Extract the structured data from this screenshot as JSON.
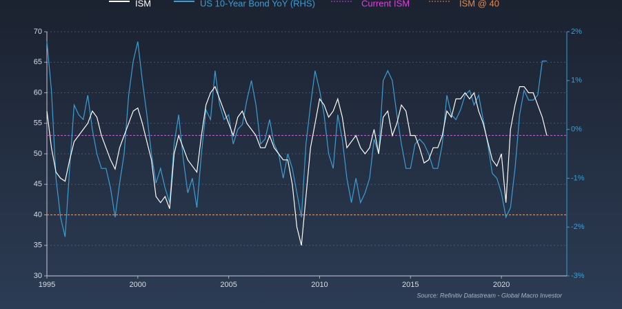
{
  "chart_data": {
    "type": "line",
    "x": [
      1995,
      1995.25,
      1995.5,
      1995.75,
      1996,
      1996.25,
      1996.5,
      1996.75,
      1997,
      1997.25,
      1997.5,
      1997.75,
      1998,
      1998.25,
      1998.5,
      1998.75,
      1999,
      1999.25,
      1999.5,
      1999.75,
      2000,
      2000.25,
      2000.5,
      2000.75,
      2001,
      2001.25,
      2001.5,
      2001.75,
      2002,
      2002.25,
      2002.5,
      2002.75,
      2003,
      2003.25,
      2003.5,
      2003.75,
      2004,
      2004.25,
      2004.5,
      2004.75,
      2005,
      2005.25,
      2005.5,
      2005.75,
      2006,
      2006.25,
      2006.5,
      2006.75,
      2007,
      2007.25,
      2007.5,
      2007.75,
      2008,
      2008.25,
      2008.5,
      2008.75,
      2009,
      2009.25,
      2009.5,
      2009.75,
      2010,
      2010.25,
      2010.5,
      2010.75,
      2011,
      2011.25,
      2011.5,
      2011.75,
      2012,
      2012.25,
      2012.5,
      2012.75,
      2013,
      2013.25,
      2013.5,
      2013.75,
      2014,
      2014.25,
      2014.5,
      2014.75,
      2015,
      2015.25,
      2015.5,
      2015.75,
      2016,
      2016.25,
      2016.5,
      2016.75,
      2017,
      2017.25,
      2017.5,
      2017.75,
      2018,
      2018.25,
      2018.5,
      2018.75,
      2019,
      2019.25,
      2019.5,
      2019.75,
      2020,
      2020.25,
      2020.5,
      2020.75,
      2021,
      2021.25,
      2021.5,
      2021.75,
      2022,
      2022.25,
      2022.5
    ],
    "series": [
      {
        "name": "ISM",
        "color": "#ffffff",
        "values": [
          57,
          51,
          47,
          46,
          45.5,
          49,
          52,
          53,
          54,
          55,
          57,
          56,
          53,
          51,
          49,
          47.5,
          51,
          53,
          55,
          57,
          57.5,
          55,
          52,
          49,
          43,
          42,
          43,
          41,
          50,
          53,
          51,
          49,
          48,
          47,
          53,
          58,
          60,
          61,
          59,
          57,
          55,
          53,
          56,
          57,
          55,
          54,
          53,
          51,
          51,
          53,
          51,
          50,
          49,
          49,
          45,
          38,
          35,
          43,
          51,
          55,
          59,
          58,
          56,
          57,
          59,
          56,
          51,
          52,
          53,
          51,
          50,
          51,
          54,
          50,
          56,
          57,
          53,
          55,
          58,
          57,
          53,
          53,
          51,
          48.5,
          49,
          51,
          51,
          53,
          57,
          56,
          59,
          59,
          60,
          59,
          60,
          57,
          55,
          52,
          49,
          48,
          50,
          42,
          54,
          58,
          61,
          61,
          60,
          60,
          58,
          56,
          53
        ]
      },
      {
        "name": "US 10-Year Bond YoY (RHS)",
        "color": "#3a9fd6",
        "axis": "y2",
        "values": [
          1.8,
          0.8,
          -1.0,
          -1.8,
          -2.2,
          -0.8,
          0.5,
          0.3,
          0.2,
          0.7,
          0,
          -0.5,
          -0.8,
          -0.8,
          -1.2,
          -1.8,
          -1.1,
          -0.5,
          0.7,
          1.4,
          1.8,
          1.0,
          0.3,
          -0.5,
          -1.1,
          -0.8,
          -1.2,
          -1.5,
          -0.3,
          0.3,
          -0.6,
          -1.3,
          -1.0,
          -1.6,
          -0.5,
          0.4,
          0.2,
          1.2,
          0.5,
          0.2,
          0.3,
          -0.3,
          0,
          0.1,
          0.6,
          1.0,
          0.5,
          -0.3,
          -0.2,
          0.2,
          -0.3,
          -0.5,
          -1.0,
          -0.5,
          -0.8,
          -1.3,
          -1.8,
          -0.3,
          0.5,
          1.2,
          0.8,
          0.3,
          -0.5,
          -0.8,
          0.3,
          -0.2,
          -1.0,
          -1.5,
          -1.0,
          -1.5,
          -1.3,
          -1.0,
          -0.2,
          -0.5,
          1.0,
          1.2,
          1.0,
          0.3,
          -0.3,
          -0.8,
          -0.8,
          -0.3,
          -0.2,
          -0.3,
          -0.5,
          -0.8,
          -0.8,
          -0.3,
          0.7,
          0.3,
          0.2,
          0.4,
          0.7,
          0.8,
          0.5,
          0.7,
          0.2,
          -0.3,
          -0.9,
          -1.0,
          -1.3,
          -1.8,
          -1.6,
          -0.8,
          0.3,
          0.8,
          0.6,
          0.6,
          0.7,
          1.4,
          1.4
        ]
      }
    ],
    "reference_lines": [
      {
        "name": "Current ISM",
        "value": 53,
        "color": "#e040e0"
      },
      {
        "name": "ISM @ 40",
        "value": 40,
        "color": "#e8894a"
      }
    ],
    "xlim": [
      1995,
      2023.6
    ],
    "xticks": [
      1995,
      2000,
      2005,
      2010,
      2015,
      2020
    ],
    "ylim": [
      30,
      70
    ],
    "yticks": [
      30,
      35,
      40,
      45,
      50,
      55,
      60,
      65,
      70
    ],
    "y2lim": [
      -3,
      2
    ],
    "y2ticks": [
      {
        "value": -3,
        "label": "-3%"
      },
      {
        "value": -2,
        "label": "-2%"
      },
      {
        "value": -1,
        "label": "-1%"
      },
      {
        "value": 0,
        "label": "0%"
      },
      {
        "value": 1,
        "label": "1%"
      },
      {
        "value": 2,
        "label": "2%"
      }
    ],
    "grid": true,
    "source": "Source: Refinitiv Datastream - Global Macro Investor"
  }
}
